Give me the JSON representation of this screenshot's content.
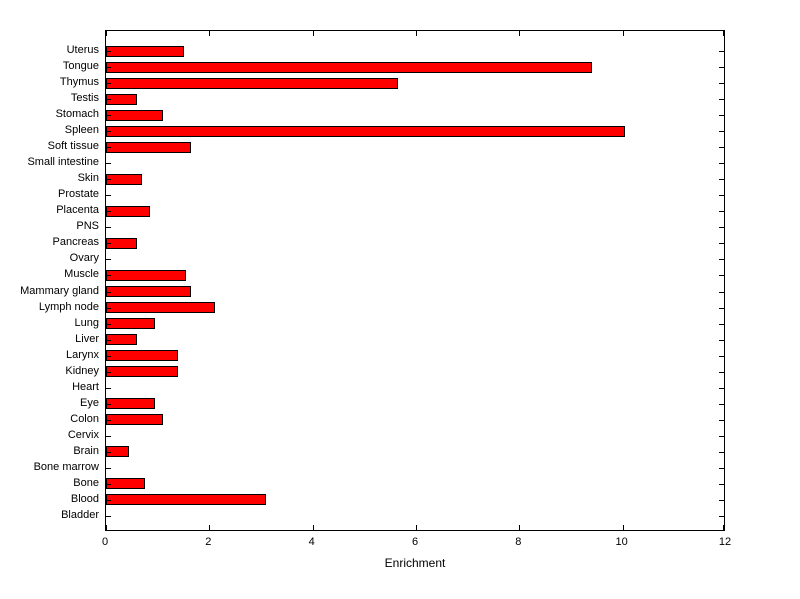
{
  "chart_data": {
    "type": "bar",
    "orientation": "horizontal",
    "title": "",
    "xlabel": "Enrichment",
    "ylabel": "",
    "xlim": [
      0,
      12
    ],
    "xticks": [
      0,
      2,
      4,
      6,
      8,
      10,
      12
    ],
    "grid": false,
    "legend": "none",
    "bar_color": "#ff0000",
    "bar_edge_color": "#000000",
    "categories": [
      "Uterus",
      "Tongue",
      "Thymus",
      "Testis",
      "Stomach",
      "Spleen",
      "Soft tissue",
      "Small intestine",
      "Skin",
      "Prostate",
      "Placenta",
      "PNS",
      "Pancreas",
      "Ovary",
      "Muscle",
      "Mammary gland",
      "Lymph node",
      "Lung",
      "Liver",
      "Larynx",
      "Kidney",
      "Heart",
      "Eye",
      "Colon",
      "Cervix",
      "Brain",
      "Bone marrow",
      "Bone",
      "Blood",
      "Bladder"
    ],
    "values": [
      1.5,
      9.4,
      5.65,
      0.6,
      1.1,
      10.05,
      1.65,
      0,
      0.7,
      0,
      0.85,
      0,
      0.6,
      0,
      1.55,
      1.65,
      2.1,
      0.95,
      0.6,
      1.4,
      1.4,
      0,
      0.95,
      1.1,
      0,
      0.45,
      0,
      0.75,
      3.1,
      0
    ]
  }
}
